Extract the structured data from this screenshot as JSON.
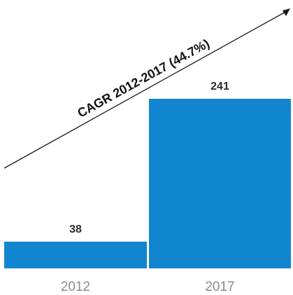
{
  "chart_data": {
    "type": "bar",
    "categories": [
      "2012",
      "2017"
    ],
    "values": [
      38,
      241
    ],
    "value_labels": [
      "38",
      "241"
    ],
    "annotation": "CAGR 2012-2017 (44.7%)",
    "title": "",
    "xlabel": "",
    "ylabel": "",
    "ylim": [
      0,
      241
    ],
    "grid": false,
    "legend": "none"
  },
  "colors": {
    "bar": "#1185cf",
    "value_text": "#2b2b2b",
    "tick_text": "#8a8a8a",
    "annotation_text": "#111111",
    "trend_line": "#1a1a1a"
  }
}
